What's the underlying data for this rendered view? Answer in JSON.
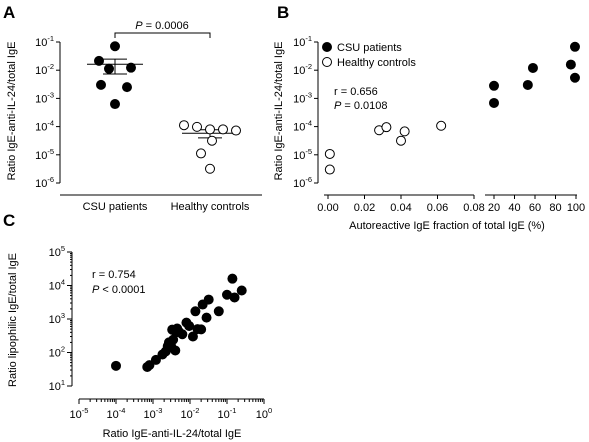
{
  "chart_data": [
    {
      "panel": "A",
      "type": "scatter",
      "ylabel": "Ratio IgE-anti-IL-24/total IgE",
      "yscale": "log",
      "ylim_exp": [
        -6,
        -1
      ],
      "yticks": [
        {
          "base": "10",
          "exp": "-1"
        },
        {
          "base": "10",
          "exp": "-2"
        },
        {
          "base": "10",
          "exp": "-3"
        },
        {
          "base": "10",
          "exp": "-4"
        },
        {
          "base": "10",
          "exp": "-5"
        },
        {
          "base": "10",
          "exp": "-6"
        }
      ],
      "categories": [
        "CSU patients",
        "Healthy controls"
      ],
      "significance": "P = 0.0006",
      "series": [
        {
          "name": "CSU patients",
          "filled": true,
          "values": [
            0.0708,
            0.0214,
            0.0123,
            0.0112,
            0.00302,
            0.00251,
            0.00063
          ],
          "mean": 0.0162,
          "error": [
            0.0073,
            0.0246
          ]
        },
        {
          "name": "Healthy controls",
          "filled": false,
          "values": [
            0.000112,
            9.77e-05,
            7.94e-05,
            7.94e-05,
            7.24e-05,
            3.16e-05,
            1.12e-05,
            3.2e-06
          ],
          "mean": 5.8e-05,
          "error": [
            3.98e-05,
            7.76e-05
          ]
        }
      ]
    },
    {
      "panel": "B",
      "type": "scatter",
      "xlabel": "Autoreactive IgE fraction of total IgE (%)",
      "ylabel": "Ratio IgE-anti-IL-24/total IgE",
      "yscale": "log",
      "ylim_exp": [
        -6,
        -1
      ],
      "yticks": [
        {
          "base": "10",
          "exp": "-1"
        },
        {
          "base": "10",
          "exp": "-2"
        },
        {
          "base": "10",
          "exp": "-3"
        },
        {
          "base": "10",
          "exp": "-4"
        },
        {
          "base": "10",
          "exp": "-5"
        },
        {
          "base": "10",
          "exp": "-6"
        }
      ],
      "xticks_left": [
        "0.00",
        "0.02",
        "0.04",
        "0.06",
        "0.08"
      ],
      "xticks_right": [
        "20",
        "40",
        "60",
        "80",
        "100"
      ],
      "xlim_left": [
        0,
        0.08
      ],
      "xlim_right": [
        20,
        100
      ],
      "annotation_r": "r = 0.656",
      "annotation_p_label": "P",
      "annotation_p": " = 0.0108",
      "legend": [
        {
          "label": "CSU patients",
          "filled": true
        },
        {
          "label": "Healthy controls",
          "filled": false
        }
      ],
      "legend_placement": "top-left",
      "series": [
        {
          "name": "CSU patients",
          "filled": true,
          "points": [
            [
              20,
              0.0028
            ],
            [
              20,
              0.00069
            ],
            [
              53,
              0.003
            ],
            [
              58,
              0.012
            ],
            [
              95,
              0.0158
            ],
            [
              99,
              0.0676
            ],
            [
              99,
              0.0054
            ]
          ]
        },
        {
          "name": "Healthy controls",
          "filled": false,
          "points": [
            [
              0.001,
              1.07e-05
            ],
            [
              0.001,
              3e-06
            ],
            [
              0.028,
              7.41e-05
            ],
            [
              0.032,
              9.55e-05
            ],
            [
              0.04,
              3.16e-05
            ],
            [
              0.042,
              6.76e-05
            ],
            [
              0.062,
              0.000107
            ]
          ]
        }
      ]
    },
    {
      "panel": "C",
      "type": "scatter",
      "xlabel": "Ratio IgE-anti-IL-24/total IgE",
      "ylabel": "Ratio lipophilic IgE/total IgE",
      "xscale": "log",
      "yscale": "log",
      "xlim_exp": [
        -5,
        0
      ],
      "ylim_exp": [
        1,
        5
      ],
      "xticks": [
        {
          "base": "10",
          "exp": "-5"
        },
        {
          "base": "10",
          "exp": "-4"
        },
        {
          "base": "10",
          "exp": "-3"
        },
        {
          "base": "10",
          "exp": "-2"
        },
        {
          "base": "10",
          "exp": "-1"
        },
        {
          "base": "10",
          "exp": "0"
        }
      ],
      "yticks": [
        {
          "base": "10",
          "exp": "5"
        },
        {
          "base": "10",
          "exp": "4"
        },
        {
          "base": "10",
          "exp": "3"
        },
        {
          "base": "10",
          "exp": "2"
        },
        {
          "base": "10",
          "exp": "1"
        }
      ],
      "annotation_r": "r = 0.754",
      "annotation_p_label": "P",
      "annotation_p": " < 0.0001",
      "points": [
        [
          0.0001,
          40
        ],
        [
          0.0007,
          37
        ],
        [
          0.0008,
          42
        ],
        [
          0.0012,
          60
        ],
        [
          0.0018,
          87
        ],
        [
          0.0022,
          107
        ],
        [
          0.0025,
          155
        ],
        [
          0.0027,
          200
        ],
        [
          0.0031,
          155
        ],
        [
          0.0033,
          480
        ],
        [
          0.0035,
          240
        ],
        [
          0.004,
          115
        ],
        [
          0.0042,
          400
        ],
        [
          0.0045,
          520
        ],
        [
          0.005,
          420
        ],
        [
          0.0062,
          350
        ],
        [
          0.008,
          780
        ],
        [
          0.0095,
          620
        ],
        [
          0.012,
          300
        ],
        [
          0.014,
          1700
        ],
        [
          0.016,
          500
        ],
        [
          0.02,
          490
        ],
        [
          0.022,
          2700
        ],
        [
          0.028,
          1100
        ],
        [
          0.032,
          3800
        ],
        [
          0.06,
          1700
        ],
        [
          0.1,
          5300
        ],
        [
          0.14,
          16000
        ],
        [
          0.16,
          4400
        ],
        [
          0.25,
          7100
        ]
      ]
    }
  ]
}
